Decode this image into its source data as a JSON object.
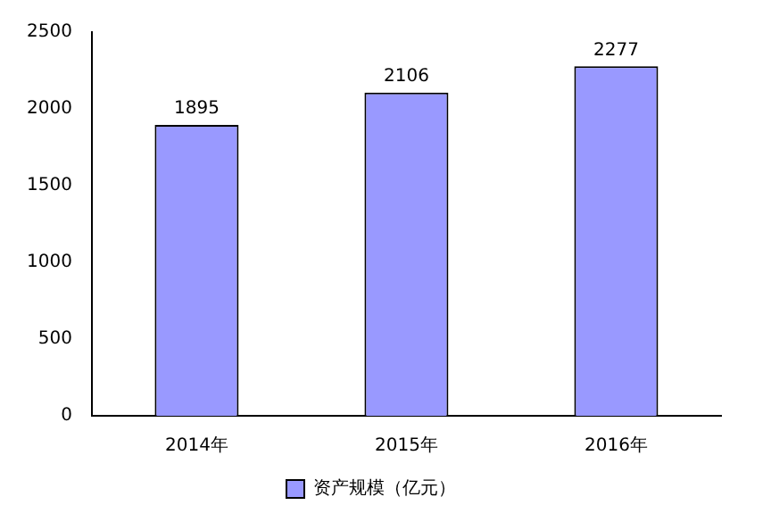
{
  "chart_data": {
    "type": "bar",
    "categories": [
      "2014年",
      "2015年",
      "2016年"
    ],
    "series": [
      {
        "name": "资产规模（亿元）",
        "color": "#9999ff",
        "values": [
          1895,
          2106,
          2277
        ]
      }
    ],
    "ylim": [
      0,
      2500
    ],
    "yticks": [
      0,
      500,
      1000,
      1500,
      2000,
      2500
    ],
    "grid": false,
    "legend": "bottom",
    "data_labels": true
  }
}
